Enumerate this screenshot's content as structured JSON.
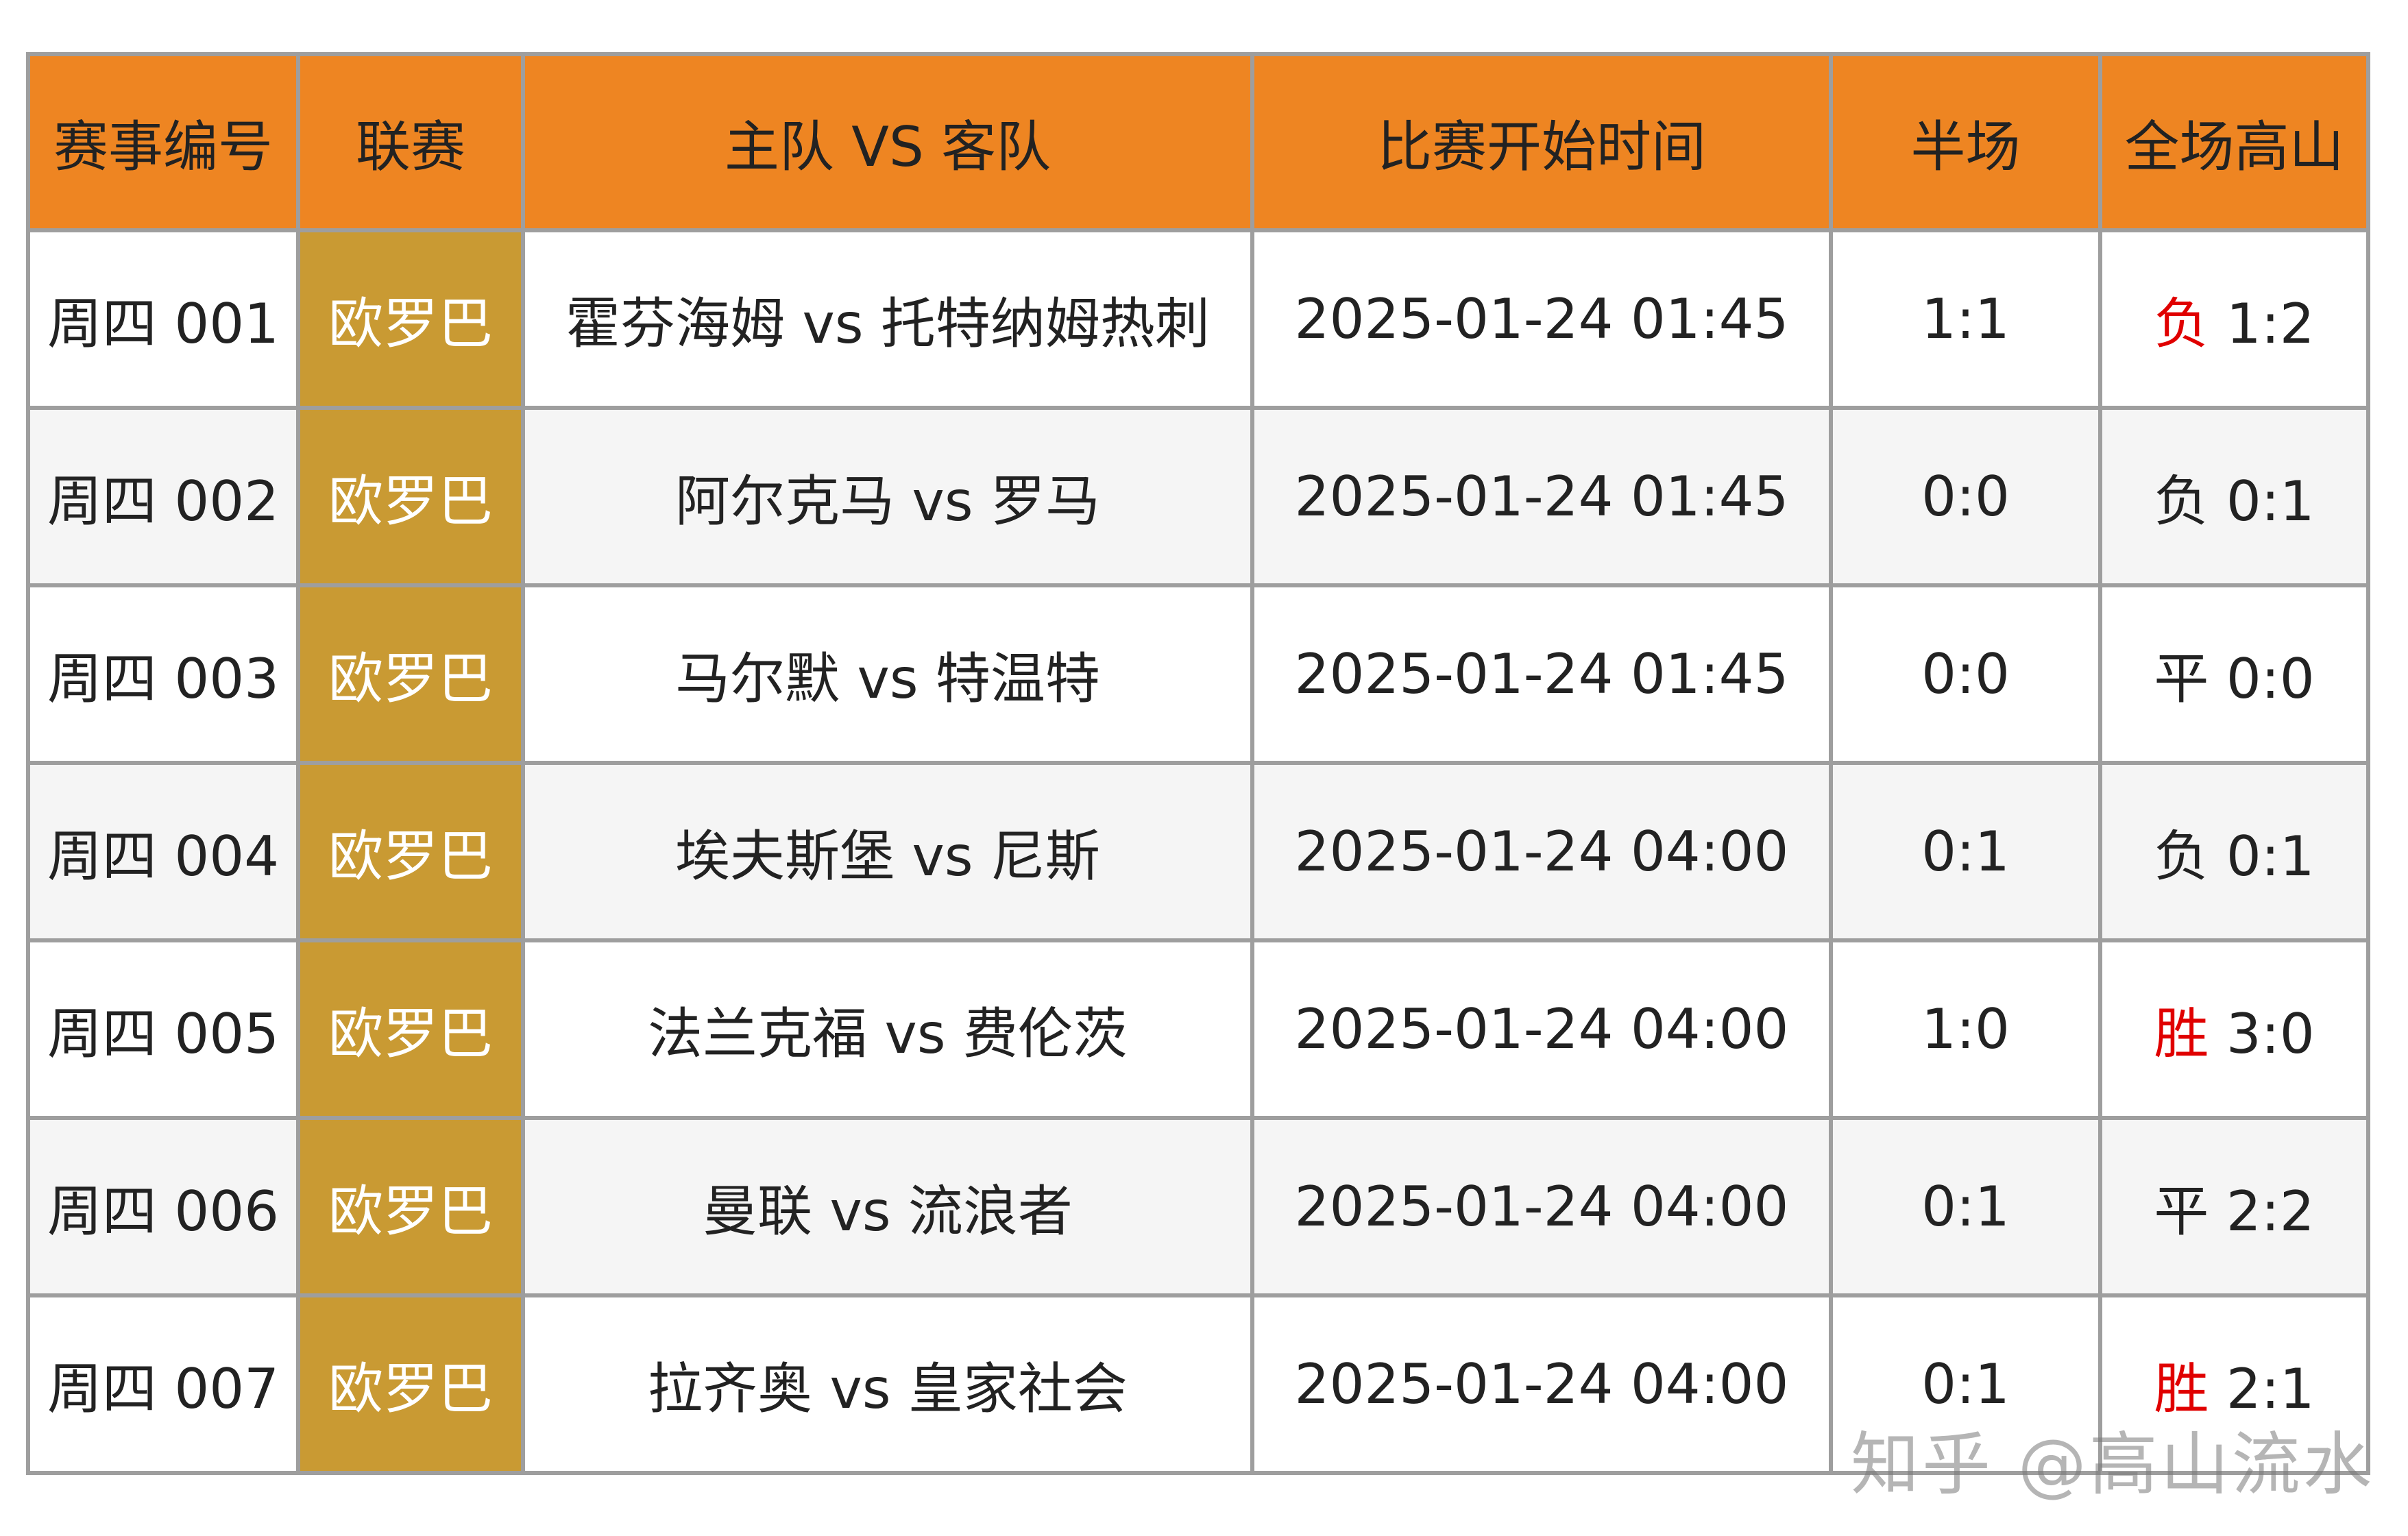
{
  "headers": [
    "赛事编号",
    "联赛",
    "主队 VS 客队",
    "比赛开始时间",
    "半场",
    "全场高山"
  ],
  "rows": [
    {
      "id": "周四 001",
      "league": "欧罗巴",
      "match": "霍芬海姆 vs 托特纳姆热刺",
      "time": "2025-01-24 01:45",
      "half": "1:1",
      "result": "负",
      "full": "1:2",
      "result_red": true
    },
    {
      "id": "周四 002",
      "league": "欧罗巴",
      "match": "阿尔克马 vs 罗马",
      "time": "2025-01-24 01:45",
      "half": "0:0",
      "result": "负",
      "full": "0:1",
      "result_red": false
    },
    {
      "id": "周四 003",
      "league": "欧罗巴",
      "match": "马尔默 vs 特温特",
      "time": "2025-01-24 01:45",
      "half": "0:0",
      "result": "平",
      "full": "0:0",
      "result_red": false
    },
    {
      "id": "周四 004",
      "league": "欧罗巴",
      "match": "埃夫斯堡 vs 尼斯",
      "time": "2025-01-24 04:00",
      "half": "0:1",
      "result": "负",
      "full": "0:1",
      "result_red": false
    },
    {
      "id": "周四 005",
      "league": "欧罗巴",
      "match": "法兰克福 vs 费伦茨",
      "time": "2025-01-24 04:00",
      "half": "1:0",
      "result": "胜",
      "full": "3:0",
      "result_red": true
    },
    {
      "id": "周四 006",
      "league": "欧罗巴",
      "match": "曼联 vs 流浪者",
      "time": "2025-01-24 04:00",
      "half": "0:1",
      "result": "平",
      "full": "2:2",
      "result_red": false
    },
    {
      "id": "周四 007",
      "league": "欧罗巴",
      "match": "拉齐奥 vs 皇家社会",
      "time": "2025-01-24 04:00",
      "half": "0:1",
      "result": "胜",
      "full": "2:1",
      "result_red": true
    }
  ],
  "colors": {
    "header_bg": "#ee8522",
    "league_bg": "#c99a33",
    "border": "#9e9e9e",
    "win_loss_red": "#e00000",
    "alt_row": "#f5f5f5"
  },
  "watermark": "知乎 @高山流水"
}
